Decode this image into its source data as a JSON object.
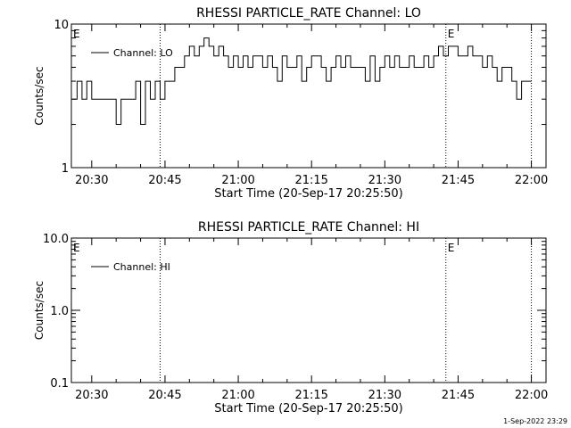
{
  "chart_data": [
    {
      "type": "line",
      "title": "RHESSI PARTICLE_RATE Channel: LO",
      "xlabel": "Start Time (20-Sep-17 20:25:50)",
      "ylabel": "Counts/sec",
      "y_scale": "log",
      "ylim": [
        1,
        10
      ],
      "y_ticks": [
        1,
        10
      ],
      "y_tick_labels": [
        "1",
        "10"
      ],
      "xlim": [
        "20:25:50",
        "22:03:00"
      ],
      "x_ticks": [
        "20:30",
        "20:45",
        "21:00",
        "21:15",
        "21:30",
        "21:45",
        "22:00"
      ],
      "grid": false,
      "legend": {
        "position": "top-left",
        "entries": [
          "Channel: LO"
        ]
      },
      "markers": [
        {
          "time": "20:44:00",
          "label": ""
        },
        {
          "time": "21:42:30",
          "label": "E"
        },
        {
          "time": "22:00:00",
          "label": ""
        }
      ],
      "corner_labels": [
        "E"
      ],
      "series": [
        {
          "name": "Channel: LO",
          "x": [
            "20:26:00",
            "20:27:00",
            "20:28:00",
            "20:29:00",
            "20:30:00",
            "20:31:00",
            "20:32:00",
            "20:33:00",
            "20:34:00",
            "20:35:00",
            "20:36:00",
            "20:37:00",
            "20:38:00",
            "20:39:00",
            "20:40:00",
            "20:41:00",
            "20:42:00",
            "20:43:00",
            "20:44:00",
            "20:45:00",
            "20:46:00",
            "20:47:00",
            "20:48:00",
            "20:49:00",
            "20:50:00",
            "20:51:00",
            "20:52:00",
            "20:53:00",
            "20:54:00",
            "20:55:00",
            "20:56:00",
            "20:57:00",
            "20:58:00",
            "20:59:00",
            "21:00:00",
            "21:01:00",
            "21:02:00",
            "21:03:00",
            "21:04:00",
            "21:05:00",
            "21:06:00",
            "21:07:00",
            "21:08:00",
            "21:09:00",
            "21:10:00",
            "21:11:00",
            "21:12:00",
            "21:13:00",
            "21:14:00",
            "21:15:00",
            "21:16:00",
            "21:17:00",
            "21:18:00",
            "21:19:00",
            "21:20:00",
            "21:21:00",
            "21:22:00",
            "21:23:00",
            "21:24:00",
            "21:25:00",
            "21:26:00",
            "21:27:00",
            "21:28:00",
            "21:29:00",
            "21:30:00",
            "21:31:00",
            "21:32:00",
            "21:33:00",
            "21:34:00",
            "21:35:00",
            "21:36:00",
            "21:37:00",
            "21:38:00",
            "21:39:00",
            "21:40:00",
            "21:41:00",
            "21:42:00",
            "21:43:00",
            "21:44:00",
            "21:45:00",
            "21:46:00",
            "21:47:00",
            "21:48:00",
            "21:49:00",
            "21:50:00",
            "21:51:00",
            "21:52:00",
            "21:53:00",
            "21:54:00",
            "21:55:00",
            "21:56:00",
            "21:57:00",
            "21:58:00",
            "21:59:00"
          ],
          "values": [
            3,
            4,
            3,
            4,
            3,
            3,
            3,
            3,
            3,
            2,
            3,
            3,
            3,
            4,
            2,
            4,
            3,
            4,
            3,
            4,
            4,
            5,
            5,
            6,
            7,
            6,
            7,
            8,
            7,
            6,
            7,
            6,
            5,
            6,
            5,
            6,
            5,
            6,
            6,
            5,
            6,
            5,
            4,
            6,
            5,
            5,
            6,
            4,
            5,
            6,
            6,
            5,
            4,
            5,
            6,
            5,
            6,
            5,
            5,
            5,
            4,
            6,
            4,
            5,
            6,
            5,
            6,
            5,
            5,
            6,
            5,
            5,
            6,
            5,
            6,
            7,
            6,
            7,
            7,
            6,
            6,
            7,
            6,
            6,
            5,
            6,
            5,
            4,
            5,
            5,
            4,
            3,
            4,
            4
          ]
        }
      ]
    },
    {
      "type": "line",
      "title": "RHESSI PARTICLE_RATE Channel: HI",
      "xlabel": "Start Time (20-Sep-17 20:25:50)",
      "ylabel": "Counts/sec",
      "y_scale": "log",
      "ylim": [
        0.1,
        10
      ],
      "y_ticks": [
        0.1,
        1,
        10
      ],
      "y_tick_labels": [
        "0.1",
        "1.0",
        "10.0"
      ],
      "xlim": [
        "20:25:50",
        "22:03:00"
      ],
      "x_ticks": [
        "20:30",
        "20:45",
        "21:00",
        "21:15",
        "21:30",
        "21:45",
        "22:00"
      ],
      "grid": false,
      "legend": {
        "position": "top-left",
        "entries": [
          "Channel: HI"
        ]
      },
      "markers": [
        {
          "time": "20:44:00",
          "label": ""
        },
        {
          "time": "21:42:30",
          "label": "E"
        },
        {
          "time": "22:00:00",
          "label": ""
        }
      ],
      "corner_labels": [
        "E"
      ],
      "series": [
        {
          "name": "Channel: HI",
          "x": [],
          "values": []
        }
      ]
    }
  ],
  "footer": {
    "timestamp": "1-Sep-2022 23:29"
  }
}
